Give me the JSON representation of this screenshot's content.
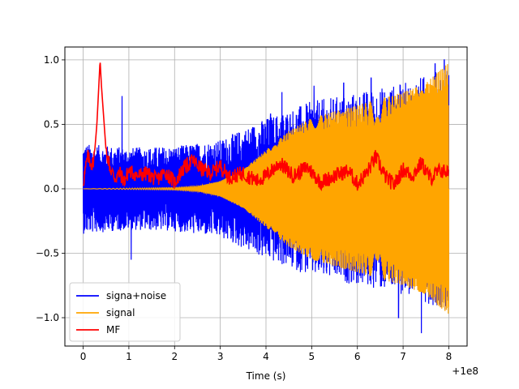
{
  "chart_data": {
    "type": "line",
    "title": "",
    "xlabel": "Time (s)",
    "ylabel": "",
    "x_offset_label": "+1e8",
    "xlim": [
      -0.4,
      8.4
    ],
    "ylim": [
      -1.22,
      1.1
    ],
    "x_ticks": [
      0,
      1,
      2,
      3,
      4,
      5,
      6,
      7,
      8
    ],
    "x_tick_labels": [
      "0",
      "1",
      "2",
      "3",
      "4",
      "5",
      "6",
      "7",
      "8"
    ],
    "y_ticks": [
      -1.0,
      -0.5,
      0.0,
      0.5,
      1.0
    ],
    "y_tick_labels": [
      "−1.0",
      "−0.5",
      "0.0",
      "0.5",
      "1.0"
    ],
    "grid": true,
    "legend_position": "lower-left",
    "series": [
      {
        "name": "signa+noise",
        "color": "#0000ff",
        "description": "dense noisy oscillation; envelope about ±0.35 from 0 to 3, rising to about ±0.9 near 8",
        "envelope": [
          [
            0,
            0.35
          ],
          [
            1,
            0.32
          ],
          [
            2,
            0.33
          ],
          [
            3,
            0.38
          ],
          [
            4,
            0.55
          ],
          [
            5,
            0.68
          ],
          [
            6,
            0.75
          ],
          [
            7,
            0.82
          ],
          [
            8,
            0.95
          ]
        ],
        "peaks": [
          [
            0.85,
            0.72
          ],
          [
            1.05,
            -0.55
          ],
          [
            4.1,
            0.58
          ],
          [
            4.35,
            0.75
          ],
          [
            5.05,
            0.8
          ],
          [
            5.7,
            0.82
          ],
          [
            6.3,
            0.86
          ],
          [
            6.9,
            -1.0
          ],
          [
            7.4,
            -1.12
          ],
          [
            7.7,
            0.97
          ],
          [
            7.9,
            1.0
          ]
        ]
      },
      {
        "name": "signal",
        "color": "#ffa500",
        "description": "chirp signal with growing amplitude, zero until about 2",
        "envelope": [
          [
            0,
            0.0
          ],
          [
            2,
            0.01
          ],
          [
            2.5,
            0.02
          ],
          [
            3,
            0.06
          ],
          [
            3.5,
            0.15
          ],
          [
            4,
            0.3
          ],
          [
            4.5,
            0.45
          ],
          [
            5,
            0.55
          ],
          [
            5.5,
            0.6
          ],
          [
            6,
            0.65
          ],
          [
            6.5,
            0.7
          ],
          [
            7,
            0.75
          ],
          [
            7.5,
            0.82
          ],
          [
            8,
            0.98
          ]
        ]
      },
      {
        "name": "MF",
        "color": "#ff0000",
        "description": "matched filter output, sharp peak near 0.37",
        "points": [
          [
            0,
            0.05
          ],
          [
            0.1,
            0.25
          ],
          [
            0.2,
            0.18
          ],
          [
            0.25,
            0.28
          ],
          [
            0.3,
            0.5
          ],
          [
            0.35,
            0.85
          ],
          [
            0.37,
            1.0
          ],
          [
            0.4,
            0.8
          ],
          [
            0.45,
            0.55
          ],
          [
            0.5,
            0.3
          ],
          [
            0.6,
            0.15
          ],
          [
            0.7,
            0.08
          ],
          [
            0.8,
            0.12
          ],
          [
            0.9,
            0.06
          ],
          [
            1.0,
            0.14
          ],
          [
            1.2,
            0.1
          ],
          [
            1.4,
            0.12
          ],
          [
            1.6,
            0.07
          ],
          [
            1.8,
            0.13
          ],
          [
            2.0,
            0.05
          ],
          [
            2.2,
            0.16
          ],
          [
            2.4,
            0.22
          ],
          [
            2.6,
            0.15
          ],
          [
            2.8,
            0.12
          ],
          [
            3.0,
            0.18
          ],
          [
            3.2,
            0.09
          ],
          [
            3.5,
            0.12
          ],
          [
            3.8,
            0.06
          ],
          [
            4.0,
            0.1
          ],
          [
            4.3,
            0.2
          ],
          [
            4.6,
            0.1
          ],
          [
            4.9,
            0.17
          ],
          [
            5.2,
            0.05
          ],
          [
            5.5,
            0.1
          ],
          [
            5.8,
            0.14
          ],
          [
            6.0,
            0.04
          ],
          [
            6.2,
            0.12
          ],
          [
            6.4,
            0.25
          ],
          [
            6.6,
            0.1
          ],
          [
            6.8,
            0.03
          ],
          [
            7.0,
            0.15
          ],
          [
            7.2,
            0.1
          ],
          [
            7.4,
            0.2
          ],
          [
            7.6,
            0.08
          ],
          [
            7.8,
            0.14
          ],
          [
            8.0,
            0.13
          ]
        ]
      }
    ]
  }
}
